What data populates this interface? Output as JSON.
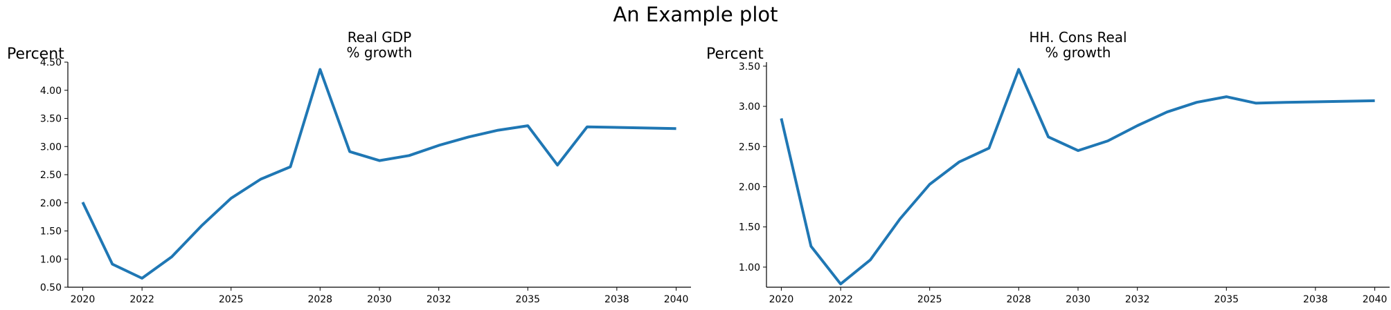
{
  "figure": {
    "suptitle": "An Example plot"
  },
  "chart_data": [
    {
      "type": "line",
      "title_lines": [
        "Real GDP",
        "% growth"
      ],
      "ylabel": "Percent",
      "xlabel": "",
      "xlim": [
        2019.5,
        2040.5
      ],
      "ylim": [
        0.5,
        4.5
      ],
      "xticks": [
        2020,
        2022,
        2025,
        2028,
        2030,
        2032,
        2035,
        2038,
        2040
      ],
      "xtick_labels": [
        "2020",
        "2022",
        "2025",
        "2028",
        "2030",
        "2032",
        "2035",
        "2038",
        "2040"
      ],
      "yticks": [
        0.5,
        1.0,
        1.5,
        2.0,
        2.5,
        3.0,
        3.5,
        4.0,
        4.5
      ],
      "ytick_labels": [
        "0.50",
        "1.00",
        "1.50",
        "2.00",
        "2.50",
        "3.00",
        "3.50",
        "4.00",
        "4.50"
      ],
      "grid": false,
      "color": "#1f77b4",
      "x": [
        2020,
        2021,
        2022,
        2023,
        2024,
        2025,
        2026,
        2027,
        2028,
        2029,
        2030,
        2031,
        2032,
        2033,
        2034,
        2035,
        2036,
        2037,
        2040
      ],
      "values": [
        2.01,
        0.91,
        0.66,
        1.04,
        1.59,
        2.08,
        2.42,
        2.64,
        4.37,
        2.91,
        2.75,
        2.84,
        3.02,
        3.17,
        3.29,
        3.37,
        2.67,
        3.35,
        3.32
      ]
    },
    {
      "type": "line",
      "title_lines": [
        "HH. Cons Real",
        "% growth"
      ],
      "ylabel": "Percent",
      "xlabel": "",
      "xlim": [
        2019.5,
        2040.5
      ],
      "ylim": [
        0.75,
        3.55
      ],
      "xticks": [
        2020,
        2022,
        2025,
        2028,
        2030,
        2032,
        2035,
        2038,
        2040
      ],
      "xtick_labels": [
        "2020",
        "2022",
        "2025",
        "2028",
        "2030",
        "2032",
        "2035",
        "2038",
        "2040"
      ],
      "yticks": [
        1.0,
        1.5,
        2.0,
        2.5,
        3.0,
        3.5
      ],
      "ytick_labels": [
        "1.00",
        "1.50",
        "2.00",
        "2.50",
        "3.00",
        "3.50"
      ],
      "grid": false,
      "color": "#1f77b4",
      "x": [
        2020,
        2021,
        2022,
        2023,
        2024,
        2025,
        2026,
        2027,
        2028,
        2029,
        2030,
        2031,
        2032,
        2033,
        2034,
        2035,
        2036,
        2037,
        2040
      ],
      "values": [
        2.85,
        1.26,
        0.79,
        1.09,
        1.6,
        2.03,
        2.31,
        2.48,
        3.46,
        2.62,
        2.45,
        2.57,
        2.76,
        2.93,
        3.05,
        3.12,
        3.04,
        3.05,
        3.07
      ]
    }
  ]
}
